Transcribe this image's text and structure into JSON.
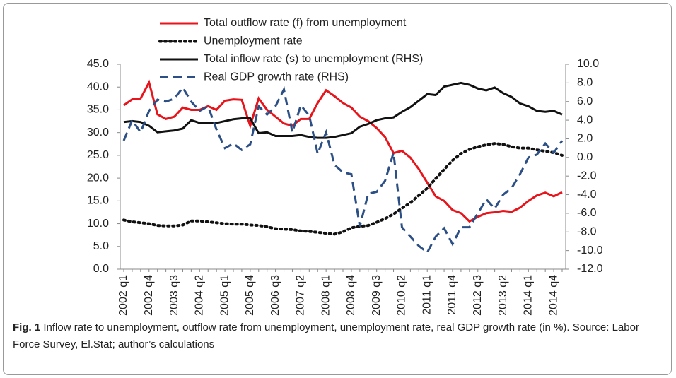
{
  "chart_data": {
    "type": "line",
    "categories": [
      "2002 q1",
      null,
      null,
      "2002 q4",
      null,
      null,
      "2003 q3",
      null,
      null,
      "2004 q2",
      null,
      null,
      "2005 q1",
      null,
      null,
      "2005 q4",
      null,
      null,
      "2006 q3",
      null,
      null,
      "2007 q2",
      null,
      null,
      "2008 q1",
      null,
      null,
      "2008 q4",
      null,
      null,
      "2009 q3",
      null,
      null,
      "2010 q2",
      null,
      null,
      "2011 q1",
      null,
      null,
      "2011 q4",
      null,
      null,
      "2012 q3",
      null,
      null,
      "2013 q2",
      null,
      null,
      "2014 q1",
      null,
      null,
      "2014 q4",
      null
    ],
    "series": [
      {
        "name": "Total outflow rate (f) from unemployment",
        "color": "#e8141b",
        "dash": "solid",
        "values": [
          36.0,
          37.3,
          37.5,
          41.0,
          34.0,
          33.0,
          33.5,
          35.5,
          35.0,
          35.0,
          35.8,
          35.0,
          37.0,
          37.3,
          37.2,
          31.5,
          37.5,
          35.0,
          33.5,
          32.0,
          31.5,
          33.0,
          33.0,
          36.5,
          39.3,
          38.0,
          36.5,
          35.5,
          33.5,
          32.5,
          31.0,
          29.0,
          25.5,
          26.0,
          24.5,
          22.0,
          19.0,
          16.0,
          15.0,
          13.0,
          12.3,
          10.5,
          11.5,
          12.3,
          12.5,
          12.8,
          12.6,
          13.5,
          15.0,
          16.2,
          16.8,
          16.0,
          16.9
        ]
      },
      {
        "name": "Unemployment rate",
        "color": "#111111",
        "dash": "dotted",
        "values": [
          10.8,
          10.4,
          10.2,
          10.0,
          9.6,
          9.5,
          9.5,
          9.7,
          10.6,
          10.6,
          10.4,
          10.2,
          10.0,
          9.9,
          9.9,
          9.7,
          9.6,
          9.3,
          8.9,
          8.8,
          8.7,
          8.4,
          8.3,
          8.1,
          7.9,
          7.7,
          8.2,
          9.1,
          9.4,
          9.6,
          10.3,
          11.1,
          12.1,
          13.4,
          14.6,
          16.2,
          17.8,
          19.9,
          21.9,
          23.9,
          25.4,
          26.3,
          26.9,
          27.3,
          27.6,
          27.4,
          26.9,
          26.6,
          26.6,
          26.2,
          25.9,
          25.6,
          25.0
        ]
      },
      {
        "name": "Total inflow rate (s) to unemployment (RHS)",
        "color": "#111111",
        "dash": "solid",
        "axis": "y2",
        "values": [
          3.8,
          3.9,
          3.8,
          3.4,
          2.7,
          2.8,
          2.9,
          3.1,
          4.0,
          3.7,
          3.7,
          3.7,
          3.9,
          4.1,
          4.2,
          4.2,
          2.6,
          2.7,
          2.3,
          2.3,
          2.3,
          2.4,
          2.2,
          2.1,
          2.1,
          2.2,
          2.4,
          2.6,
          3.3,
          3.6,
          4.0,
          4.2,
          4.3,
          4.9,
          5.4,
          6.1,
          6.8,
          6.7,
          7.6,
          7.8,
          8.0,
          7.8,
          7.4,
          7.2,
          7.5,
          6.9,
          6.5,
          5.8,
          5.5,
          5.0,
          4.9,
          5.0,
          4.6
        ]
      },
      {
        "name": "Real GDP growth rate (RHS)",
        "color": "#2c4f85",
        "dash": "dashed",
        "axis": "y2",
        "values": [
          1.8,
          4.0,
          2.7,
          5.0,
          6.2,
          6.0,
          6.3,
          7.5,
          6.0,
          5.0,
          5.5,
          3.0,
          1.0,
          1.5,
          0.8,
          1.4,
          5.5,
          4.6,
          5.5,
          7.3,
          2.7,
          5.6,
          4.5,
          0.4,
          2.7,
          -0.8,
          -1.6,
          -1.8,
          -7.4,
          -3.9,
          -3.7,
          -2.5,
          0.5,
          -7.5,
          -8.5,
          -9.5,
          -10.2,
          -8.5,
          -7.6,
          -9.3,
          -7.5,
          -7.5,
          -6.0,
          -4.5,
          -5.5,
          -4.0,
          -3.3,
          -1.8,
          0.0,
          0.3,
          1.5,
          0.5,
          1.8
        ]
      }
    ],
    "ylim": [
      0,
      45
    ],
    "yticks": [
      {
        "value": 0,
        "label": "0.0"
      },
      {
        "value": 5,
        "label": "5.0"
      },
      {
        "value": 10,
        "label": "10.0"
      },
      {
        "value": 15,
        "label": "15.0"
      },
      {
        "value": 20,
        "label": "20.0"
      },
      {
        "value": 25,
        "label": "25.0"
      },
      {
        "value": 30,
        "label": "30.0"
      },
      {
        "value": 35,
        "label": "35.0"
      },
      {
        "value": 40,
        "label": "40.0"
      },
      {
        "value": 45,
        "label": "45.0"
      }
    ],
    "y2lim": [
      -12,
      10
    ],
    "y2ticks": [
      {
        "value": -12,
        "label": "-12.0"
      },
      {
        "value": -10,
        "label": "-10.0"
      },
      {
        "value": -8,
        "label": "-8.0"
      },
      {
        "value": -6,
        "label": "-6.0"
      },
      {
        "value": -4,
        "label": "-4.0"
      },
      {
        "value": -2,
        "label": "-2.0"
      },
      {
        "value": 0,
        "label": "0.0"
      },
      {
        "value": 2,
        "label": "2.0"
      },
      {
        "value": 4,
        "label": "4.0"
      },
      {
        "value": 6,
        "label": "6.0"
      },
      {
        "value": 8,
        "label": "8.0"
      },
      {
        "value": 10,
        "label": "10.0"
      }
    ],
    "grid": false,
    "legend": "upper left"
  },
  "caption": {
    "label": "Fig. 1",
    "text": "Inflow rate to unemployment, outflow rate from unemployment, unemployment rate, real GDP growth rate (in %). Source: Labor Force Survey, El.Stat; author’s calculations"
  }
}
